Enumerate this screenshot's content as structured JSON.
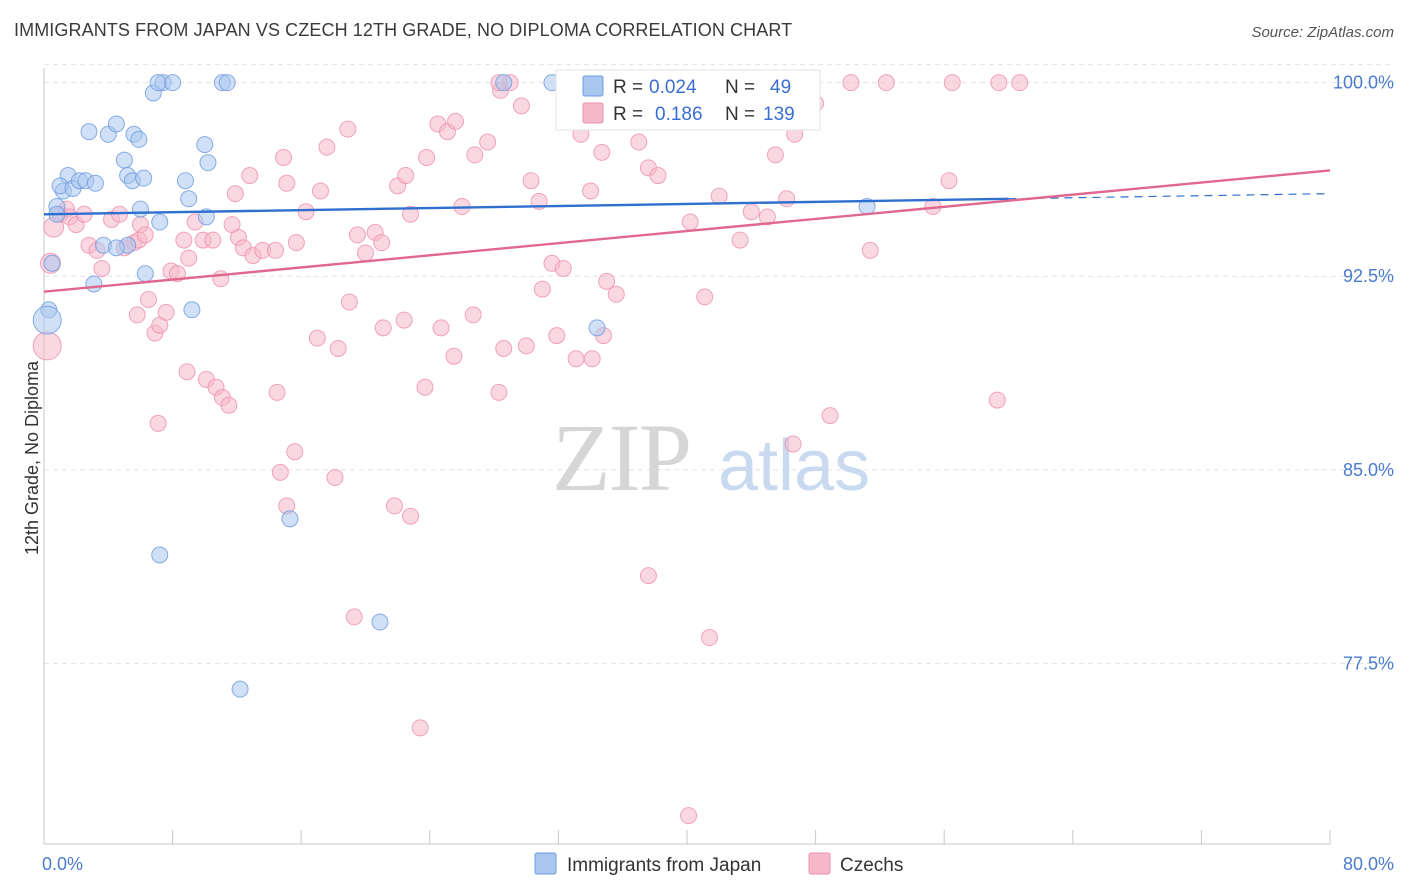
{
  "title": "IMMIGRANTS FROM JAPAN VS CZECH 12TH GRADE, NO DIPLOMA CORRELATION CHART",
  "source": "Source: ZipAtlas.com",
  "watermark": {
    "zip": "ZIP",
    "atlas": "atlas"
  },
  "legend": {
    "r_label": "R =",
    "n_label": "N =",
    "rows": [
      {
        "r": "0.024",
        "n": "49"
      },
      {
        "r": "0.186",
        "n": "139"
      }
    ]
  },
  "colors": {
    "japan_fill": "#a9c6ef",
    "japan_stroke": "#6d9ae0",
    "japan_line": "#2f6fd0",
    "czech_fill": "#f6b8cb",
    "czech_stroke": "#ee8fae",
    "czech_line": "#e0688f",
    "tick_text": "#4a7bd0",
    "grid": "#e3e3e3"
  },
  "chart_data": {
    "type": "scatter",
    "title": "IMMIGRANTS FROM JAPAN VS CZECH 12TH GRADE, NO DIPLOMA CORRELATION CHART",
    "xlabel": "",
    "ylabel": "12th Grade, No Diploma",
    "xlim": [
      0,
      80
    ],
    "ylim": [
      70.5,
      100.8
    ],
    "x_tick_labels": [
      "0.0%",
      "80.0%"
    ],
    "y_ticks": [
      77.5,
      85.0,
      92.5,
      100.0
    ],
    "y_tick_labels": [
      "77.5%",
      "85.0%",
      "92.5%",
      "100.0%"
    ],
    "grid": true,
    "legend_placement": "top-center",
    "series": [
      {
        "name": "Immigrants from Japan",
        "r": 0.024,
        "n": 49,
        "trend": {
          "x0": 0,
          "y0": 94.9,
          "x1": 60,
          "y1": 95.5,
          "dashed_to_x": 80,
          "dashed_to_y": 95.7
        },
        "points": [
          [
            0.3,
            91.2,
            8
          ],
          [
            0.2,
            90.8,
            14
          ],
          [
            0.5,
            93.0,
            8
          ],
          [
            0.8,
            95.2,
            8
          ],
          [
            1.2,
            95.8,
            8
          ],
          [
            1.5,
            96.4,
            8
          ],
          [
            1.0,
            96.0,
            8
          ],
          [
            1.8,
            95.9,
            8
          ],
          [
            2.2,
            96.2,
            8
          ],
          [
            2.6,
            96.2,
            8
          ],
          [
            3.2,
            96.1,
            8
          ],
          [
            2.8,
            98.1,
            8
          ],
          [
            4.0,
            98.0,
            8
          ],
          [
            4.5,
            98.4,
            8
          ],
          [
            5.0,
            97.0,
            8
          ],
          [
            5.6,
            98.0,
            8
          ],
          [
            5.9,
            97.8,
            8
          ],
          [
            5.2,
            96.4,
            8
          ],
          [
            5.5,
            96.2,
            8
          ],
          [
            6.0,
            95.1,
            8
          ],
          [
            7.2,
            94.6,
            8
          ],
          [
            6.2,
            96.3,
            8
          ],
          [
            6.8,
            99.6,
            8
          ],
          [
            7.4,
            100.0,
            8
          ],
          [
            7.1,
            100.0,
            8
          ],
          [
            8.0,
            100.0,
            8
          ],
          [
            11.1,
            100.0,
            8
          ],
          [
            11.4,
            100.0,
            8
          ],
          [
            10.0,
            97.6,
            8
          ],
          [
            10.2,
            96.9,
            8
          ],
          [
            8.8,
            96.2,
            8
          ],
          [
            9.0,
            95.5,
            8
          ],
          [
            10.1,
            94.8,
            8
          ],
          [
            5.2,
            93.7,
            8
          ],
          [
            3.7,
            93.7,
            8
          ],
          [
            6.3,
            92.6,
            8
          ],
          [
            3.1,
            92.2,
            8
          ],
          [
            9.2,
            91.2,
            8
          ],
          [
            28.6,
            100.0,
            8
          ],
          [
            31.6,
            100.0,
            8
          ],
          [
            34.4,
            99.6,
            8
          ],
          [
            51.2,
            95.2,
            8
          ],
          [
            34.4,
            90.5,
            8
          ],
          [
            15.3,
            83.1,
            8
          ],
          [
            7.2,
            81.7,
            8
          ],
          [
            20.9,
            79.1,
            8
          ],
          [
            12.2,
            76.5,
            8
          ],
          [
            4.5,
            93.6,
            8
          ],
          [
            0.8,
            94.9,
            8
          ]
        ]
      },
      {
        "name": "Czechs",
        "r": 0.186,
        "n": 139,
        "trend": {
          "x0": 0,
          "y0": 91.9,
          "x1": 80,
          "y1": 96.6
        },
        "points": [
          [
            0.2,
            89.8,
            14
          ],
          [
            0.4,
            93.0,
            10
          ],
          [
            0.6,
            94.4,
            10
          ],
          [
            1.0,
            94.9,
            8
          ],
          [
            1.4,
            95.1,
            8
          ],
          [
            1.6,
            94.8,
            8
          ],
          [
            2.0,
            94.5,
            8
          ],
          [
            2.5,
            94.9,
            8
          ],
          [
            2.8,
            93.7,
            8
          ],
          [
            3.3,
            93.5,
            8
          ],
          [
            3.6,
            92.8,
            8
          ],
          [
            4.2,
            94.7,
            8
          ],
          [
            4.7,
            94.9,
            8
          ],
          [
            5.0,
            93.6,
            8
          ],
          [
            5.6,
            93.8,
            8
          ],
          [
            6.0,
            94.5,
            8
          ],
          [
            5.9,
            93.9,
            8
          ],
          [
            6.3,
            94.1,
            8
          ],
          [
            5.8,
            91.0,
            8
          ],
          [
            6.5,
            91.6,
            8
          ],
          [
            6.9,
            90.3,
            8
          ],
          [
            7.2,
            90.6,
            8
          ],
          [
            7.6,
            91.1,
            8
          ],
          [
            7.9,
            92.7,
            8
          ],
          [
            8.3,
            92.6,
            8
          ],
          [
            8.7,
            93.9,
            8
          ],
          [
            9.0,
            93.2,
            8
          ],
          [
            9.4,
            94.6,
            8
          ],
          [
            9.9,
            93.9,
            8
          ],
          [
            10.5,
            93.9,
            8
          ],
          [
            11.0,
            92.4,
            8
          ],
          [
            11.7,
            94.5,
            8
          ],
          [
            12.1,
            94.0,
            8
          ],
          [
            12.4,
            93.6,
            8
          ],
          [
            13.0,
            93.3,
            8
          ],
          [
            13.6,
            93.5,
            8
          ],
          [
            14.4,
            93.5,
            8
          ],
          [
            15.7,
            93.8,
            8
          ],
          [
            11.9,
            95.7,
            8
          ],
          [
            12.8,
            96.4,
            8
          ],
          [
            14.9,
            97.1,
            8
          ],
          [
            16.3,
            95.0,
            8
          ],
          [
            17.2,
            95.8,
            8
          ],
          [
            17.6,
            97.5,
            8
          ],
          [
            18.9,
            98.2,
            8
          ],
          [
            19.5,
            94.1,
            8
          ],
          [
            20.0,
            93.4,
            8
          ],
          [
            20.6,
            94.2,
            8
          ],
          [
            21.0,
            93.8,
            8
          ],
          [
            22.0,
            96.0,
            8
          ],
          [
            22.8,
            94.9,
            8
          ],
          [
            22.5,
            96.4,
            8
          ],
          [
            23.8,
            97.1,
            8
          ],
          [
            24.5,
            98.4,
            8
          ],
          [
            25.1,
            98.1,
            8
          ],
          [
            25.6,
            98.5,
            8
          ],
          [
            26.0,
            95.2,
            8
          ],
          [
            26.8,
            97.2,
            8
          ],
          [
            27.6,
            97.7,
            8
          ],
          [
            28.4,
            99.7,
            8
          ],
          [
            29.0,
            100.0,
            8
          ],
          [
            28.3,
            100.0,
            8
          ],
          [
            29.7,
            99.1,
            8
          ],
          [
            30.3,
            96.2,
            8
          ],
          [
            30.8,
            95.4,
            8
          ],
          [
            31.0,
            92.0,
            8
          ],
          [
            31.6,
            93.0,
            8
          ],
          [
            31.9,
            90.2,
            8
          ],
          [
            32.3,
            92.8,
            8
          ],
          [
            33.0,
            99.6,
            8
          ],
          [
            33.4,
            98.0,
            8
          ],
          [
            34.0,
            95.8,
            8
          ],
          [
            34.7,
            97.3,
            8
          ],
          [
            35.0,
            92.3,
            8
          ],
          [
            35.6,
            91.8,
            8
          ],
          [
            34.1,
            89.3,
            8
          ],
          [
            34.8,
            90.2,
            8
          ],
          [
            36.5,
            98.5,
            8
          ],
          [
            37.0,
            97.7,
            8
          ],
          [
            37.6,
            96.7,
            8
          ],
          [
            38.2,
            96.4,
            8
          ],
          [
            39.4,
            100.0,
            8
          ],
          [
            40.2,
            94.6,
            8
          ],
          [
            41.1,
            91.7,
            8
          ],
          [
            42.0,
            95.6,
            8
          ],
          [
            43.3,
            93.9,
            8
          ],
          [
            44.0,
            95.0,
            8
          ],
          [
            45.0,
            94.8,
            8
          ],
          [
            45.5,
            97.2,
            8
          ],
          [
            46.2,
            95.5,
            8
          ],
          [
            46.7,
            98.0,
            8
          ],
          [
            47.3,
            99.2,
            8
          ],
          [
            48.0,
            99.2,
            8
          ],
          [
            50.2,
            100.0,
            8
          ],
          [
            52.4,
            100.0,
            8
          ],
          [
            56.5,
            100.0,
            8
          ],
          [
            59.4,
            100.0,
            8
          ],
          [
            60.7,
            100.0,
            8
          ],
          [
            55.3,
            95.2,
            8
          ],
          [
            56.3,
            96.2,
            8
          ],
          [
            51.4,
            93.5,
            8
          ],
          [
            15.1,
            96.1,
            8
          ],
          [
            17.0,
            90.1,
            8
          ],
          [
            18.3,
            89.7,
            8
          ],
          [
            19.0,
            91.5,
            8
          ],
          [
            21.1,
            90.5,
            8
          ],
          [
            22.4,
            90.8,
            8
          ],
          [
            24.7,
            90.5,
            8
          ],
          [
            25.5,
            89.4,
            8
          ],
          [
            26.7,
            91.0,
            8
          ],
          [
            28.6,
            89.7,
            8
          ],
          [
            28.3,
            88.0,
            8
          ],
          [
            30.0,
            89.8,
            8
          ],
          [
            33.1,
            89.3,
            8
          ],
          [
            8.9,
            88.8,
            8
          ],
          [
            10.1,
            88.5,
            8
          ],
          [
            10.7,
            88.2,
            8
          ],
          [
            11.1,
            87.8,
            8
          ],
          [
            11.5,
            87.5,
            8
          ],
          [
            15.6,
            85.7,
            8
          ],
          [
            14.7,
            84.9,
            8
          ],
          [
            18.1,
            84.7,
            8
          ],
          [
            15.1,
            83.6,
            8
          ],
          [
            21.8,
            83.6,
            8
          ],
          [
            22.8,
            83.2,
            8
          ],
          [
            48.9,
            87.1,
            8
          ],
          [
            46.6,
            86.0,
            8
          ],
          [
            59.3,
            87.7,
            8
          ],
          [
            37.6,
            80.9,
            8
          ],
          [
            41.4,
            78.5,
            8
          ],
          [
            19.3,
            79.3,
            8
          ],
          [
            23.4,
            75.0,
            8
          ],
          [
            40.1,
            71.6,
            8
          ],
          [
            23.7,
            88.2,
            8
          ],
          [
            14.5,
            88.0,
            8
          ],
          [
            7.1,
            86.8,
            8
          ],
          [
            40.9,
            99.5,
            8
          ],
          [
            42.3,
            99.0,
            8
          ],
          [
            44.0,
            100.0,
            8
          ]
        ]
      }
    ]
  }
}
